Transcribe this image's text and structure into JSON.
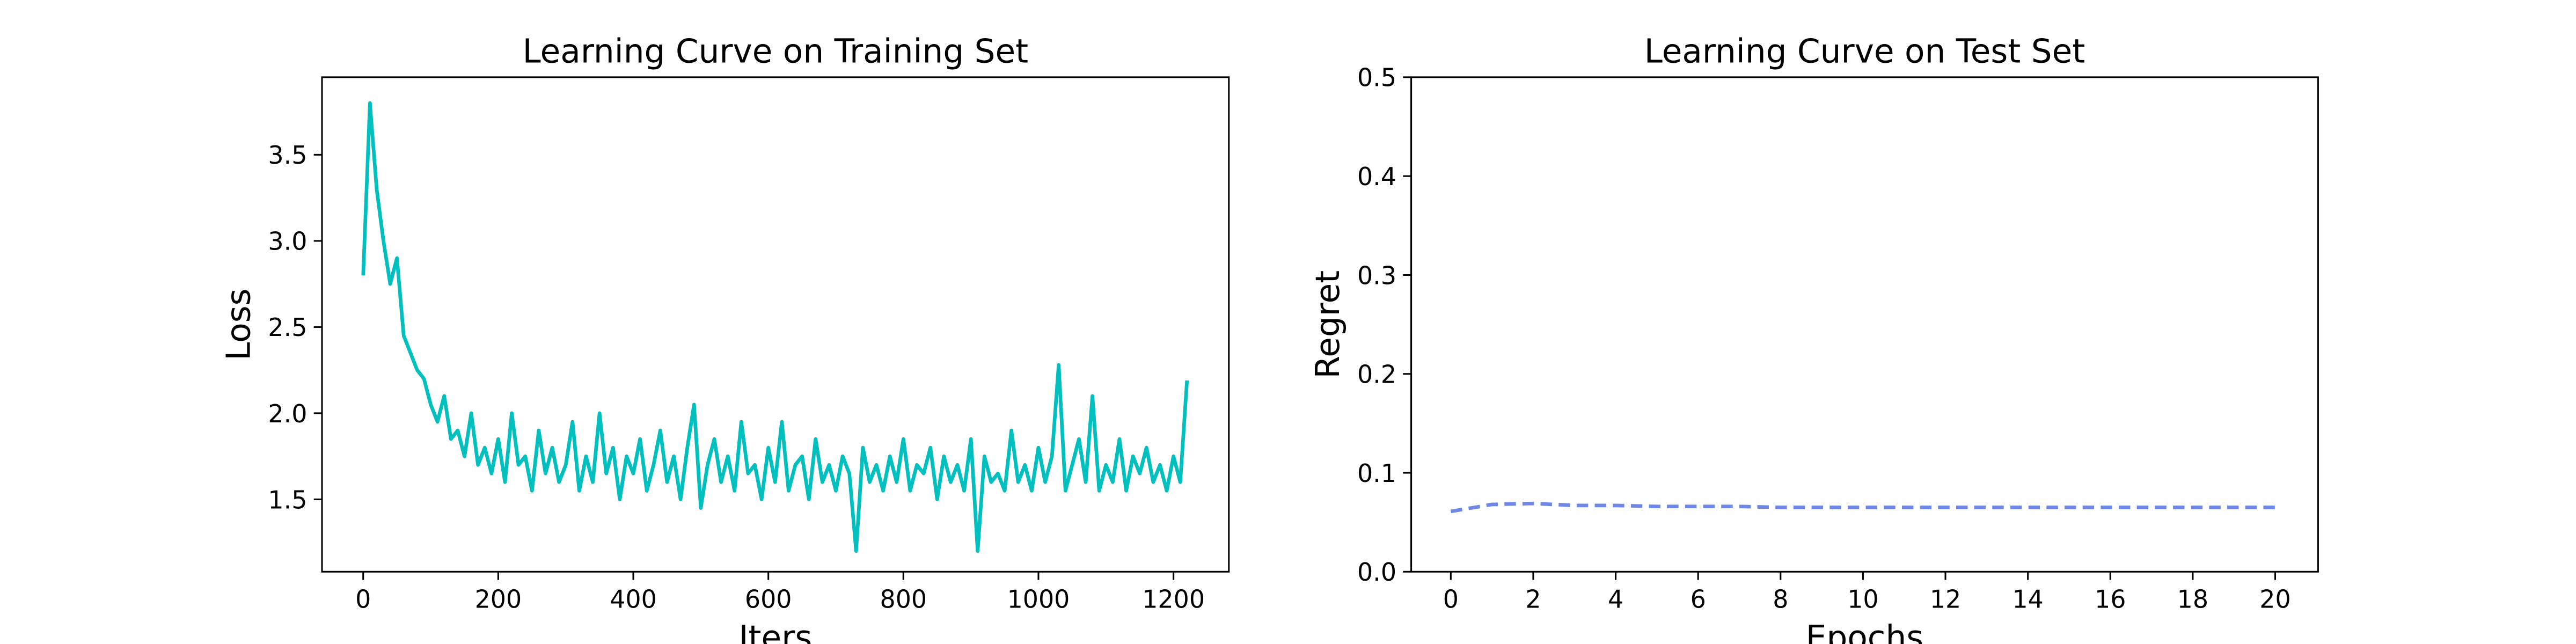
{
  "chart_data": [
    {
      "type": "line",
      "title": "Learning Curve on Training Set",
      "xlabel": "Iters",
      "ylabel": "Loss",
      "x": [
        0,
        10,
        20,
        30,
        40,
        50,
        60,
        70,
        80,
        90,
        100,
        110,
        120,
        130,
        140,
        150,
        160,
        170,
        180,
        190,
        200,
        210,
        220,
        230,
        240,
        250,
        260,
        270,
        280,
        290,
        300,
        310,
        320,
        330,
        340,
        350,
        360,
        370,
        380,
        390,
        400,
        410,
        420,
        430,
        440,
        450,
        460,
        470,
        480,
        490,
        500,
        510,
        520,
        530,
        540,
        550,
        560,
        570,
        580,
        590,
        600,
        610,
        620,
        630,
        640,
        650,
        660,
        670,
        680,
        690,
        700,
        710,
        720,
        730,
        740,
        750,
        760,
        770,
        780,
        790,
        800,
        810,
        820,
        830,
        840,
        850,
        860,
        870,
        880,
        890,
        900,
        910,
        920,
        930,
        940,
        950,
        960,
        970,
        980,
        990,
        1000,
        1010,
        1020,
        1030,
        1040,
        1050,
        1060,
        1070,
        1080,
        1090,
        1100,
        1110,
        1120,
        1130,
        1140,
        1150,
        1160,
        1170,
        1180,
        1190,
        1200,
        1210,
        1220
      ],
      "series": [
        {
          "name": "Loss",
          "color": "#00bfbf",
          "linestyle": "solid",
          "values": [
            2.8,
            3.8,
            3.3,
            3.0,
            2.75,
            2.9,
            2.45,
            2.35,
            2.25,
            2.2,
            2.05,
            1.95,
            2.1,
            1.85,
            1.9,
            1.75,
            2.0,
            1.7,
            1.8,
            1.65,
            1.85,
            1.6,
            2.0,
            1.7,
            1.75,
            1.55,
            1.9,
            1.65,
            1.8,
            1.6,
            1.7,
            1.95,
            1.55,
            1.75,
            1.6,
            2.0,
            1.65,
            1.8,
            1.5,
            1.75,
            1.65,
            1.85,
            1.55,
            1.7,
            1.9,
            1.6,
            1.75,
            1.5,
            1.8,
            2.05,
            1.45,
            1.7,
            1.85,
            1.6,
            1.75,
            1.55,
            1.95,
            1.65,
            1.7,
            1.5,
            1.8,
            1.6,
            1.95,
            1.55,
            1.7,
            1.75,
            1.5,
            1.85,
            1.6,
            1.7,
            1.55,
            1.75,
            1.65,
            1.2,
            1.8,
            1.6,
            1.7,
            1.55,
            1.75,
            1.6,
            1.85,
            1.55,
            1.7,
            1.65,
            1.8,
            1.5,
            1.75,
            1.6,
            1.7,
            1.55,
            1.85,
            1.2,
            1.75,
            1.6,
            1.65,
            1.55,
            1.9,
            1.6,
            1.7,
            1.55,
            1.8,
            1.6,
            1.75,
            2.28,
            1.55,
            1.7,
            1.85,
            1.6,
            2.1,
            1.55,
            1.7,
            1.6,
            1.85,
            1.55,
            1.75,
            1.65,
            1.8,
            1.6,
            1.7,
            1.55,
            1.75,
            1.6,
            2.19
          ]
        }
      ],
      "xlim": [
        -61,
        1282
      ],
      "xticks": [
        0,
        200,
        400,
        600,
        800,
        1000,
        1200
      ],
      "ylim": [
        1.08,
        3.95
      ],
      "yticks": [
        1.5,
        {
          "value": 2,
          "label": "2.0"
        },
        2.5,
        {
          "value": 3,
          "label": "3.0"
        },
        3.5
      ]
    },
    {
      "type": "line",
      "title": "Learning Curve on Test Set",
      "xlabel": "Epochs",
      "ylabel": "Regret",
      "x": [
        0,
        1,
        2,
        3,
        4,
        5,
        6,
        7,
        8,
        9,
        10,
        11,
        12,
        13,
        14,
        15,
        16,
        17,
        18,
        19,
        20
      ],
      "series": [
        {
          "name": "Regret",
          "color": "#6f88e8",
          "linestyle": "dashed",
          "values": [
            0.061,
            0.068,
            0.069,
            0.067,
            0.067,
            0.066,
            0.066,
            0.066,
            0.065,
            0.065,
            0.065,
            0.065,
            0.065,
            0.065,
            0.065,
            0.065,
            0.065,
            0.065,
            0.065,
            0.065,
            0.065
          ]
        }
      ],
      "xlim": [
        -0.96,
        21.04
      ],
      "xticks": [
        0,
        2,
        4,
        6,
        8,
        10,
        12,
        14,
        16,
        18,
        20
      ],
      "ylim": [
        0,
        0.5
      ],
      "yticks": [
        {
          "value": 0,
          "label": "0.0"
        },
        0.1,
        0.2,
        0.3,
        0.4,
        0.5
      ]
    }
  ]
}
